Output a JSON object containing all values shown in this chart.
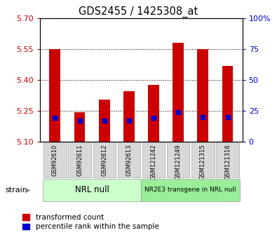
{
  "title": "GDS2455 / 1425308_at",
  "samples": [
    "GSM92610",
    "GSM92611",
    "GSM92612",
    "GSM92613",
    "GSM121242",
    "GSM121249",
    "GSM121315",
    "GSM121316"
  ],
  "transformed_counts": [
    5.551,
    5.243,
    5.305,
    5.345,
    5.375,
    5.58,
    5.548,
    5.468
  ],
  "percentile_ranks": [
    19,
    17,
    17,
    17,
    19,
    24,
    20,
    20
  ],
  "ylim_left": [
    5.1,
    5.7
  ],
  "ylim_right": [
    0,
    100
  ],
  "yticks_left": [
    5.1,
    5.25,
    5.4,
    5.55,
    5.7
  ],
  "yticks_right": [
    0,
    25,
    50,
    75,
    100
  ],
  "bar_color": "#cc0000",
  "dot_color": "#0000cc",
  "bg_color": "#ffffff",
  "group1_label": "NRL null",
  "group1_color": "#ccffcc",
  "group2_label": "NR2E3 transgene in NRL null",
  "group2_color": "#99ee99",
  "bar_width": 0.45,
  "bar_bottom": 5.1,
  "legend_red": "transformed count",
  "legend_blue": "percentile rank within the sample",
  "left_color": "#cc0000",
  "right_color": "#0000cc",
  "cell_color": "#d8d8d8"
}
